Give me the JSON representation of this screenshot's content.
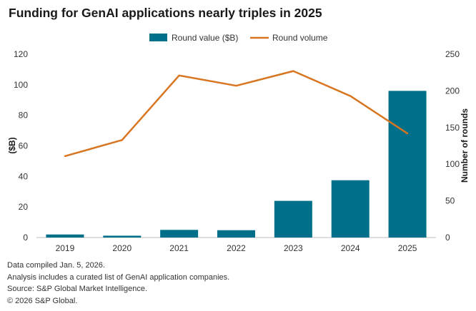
{
  "title": "Funding for GenAI applications nearly triples in 2025",
  "chart_data": {
    "type": "bar",
    "categories": [
      "2019",
      "2020",
      "2021",
      "2022",
      "2023",
      "2024",
      "2025"
    ],
    "series": [
      {
        "name": "Round value ($B)",
        "type": "bar",
        "axis": "left",
        "color": "#00708a",
        "values": [
          2,
          1.2,
          5,
          4.8,
          24,
          37.5,
          96
        ]
      },
      {
        "name": "Round volume",
        "type": "line",
        "axis": "right",
        "color": "#d87520",
        "values": [
          111,
          133,
          221,
          207,
          227,
          193,
          142
        ]
      }
    ],
    "ylabel": "($B)",
    "y2label": "Number of rounds",
    "ylim": [
      0,
      120
    ],
    "y2lim": [
      0,
      250
    ],
    "yticks": [
      "0",
      "20",
      "40",
      "60",
      "80",
      "100",
      "120"
    ],
    "y2ticks": [
      "0",
      "50",
      "100",
      "150",
      "200",
      "250"
    ],
    "grid": false,
    "legend_position": "top-center"
  },
  "notes": [
    "Data compiled Jan. 5, 2026.",
    "Analysis includes a curated list of GenAI application companies.",
    "Source: S&P Global Market Intelligence.",
    "© 2026 S&P Global."
  ]
}
